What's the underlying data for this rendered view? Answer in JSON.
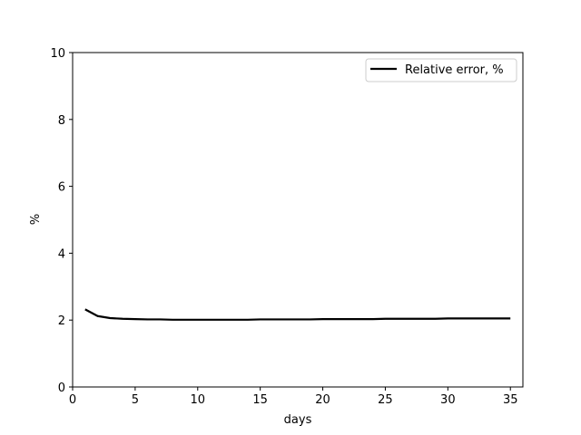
{
  "chart_data": {
    "type": "line",
    "xlabel": "days",
    "ylabel": "%",
    "xlim": [
      0,
      36
    ],
    "ylim": [
      0,
      10
    ],
    "xticks": [
      0,
      5,
      10,
      15,
      20,
      25,
      30,
      35
    ],
    "yticks": [
      0,
      2,
      4,
      6,
      8,
      10
    ],
    "grid": false,
    "legend_position": "top-right",
    "series": [
      {
        "name": "Relative error, %",
        "color": "#000000",
        "x": [
          1,
          2,
          3,
          4,
          5,
          6,
          7,
          8,
          9,
          10,
          11,
          12,
          13,
          14,
          15,
          16,
          17,
          18,
          19,
          20,
          21,
          22,
          23,
          24,
          25,
          26,
          27,
          28,
          29,
          30,
          31,
          32,
          33,
          34,
          35
        ],
        "y": [
          2.32,
          2.12,
          2.06,
          2.04,
          2.03,
          2.02,
          2.02,
          2.01,
          2.01,
          2.01,
          2.01,
          2.01,
          2.01,
          2.01,
          2.02,
          2.02,
          2.02,
          2.02,
          2.02,
          2.03,
          2.03,
          2.03,
          2.03,
          2.03,
          2.04,
          2.04,
          2.04,
          2.04,
          2.04,
          2.05,
          2.05,
          2.05,
          2.05,
          2.05,
          2.05
        ]
      }
    ]
  }
}
